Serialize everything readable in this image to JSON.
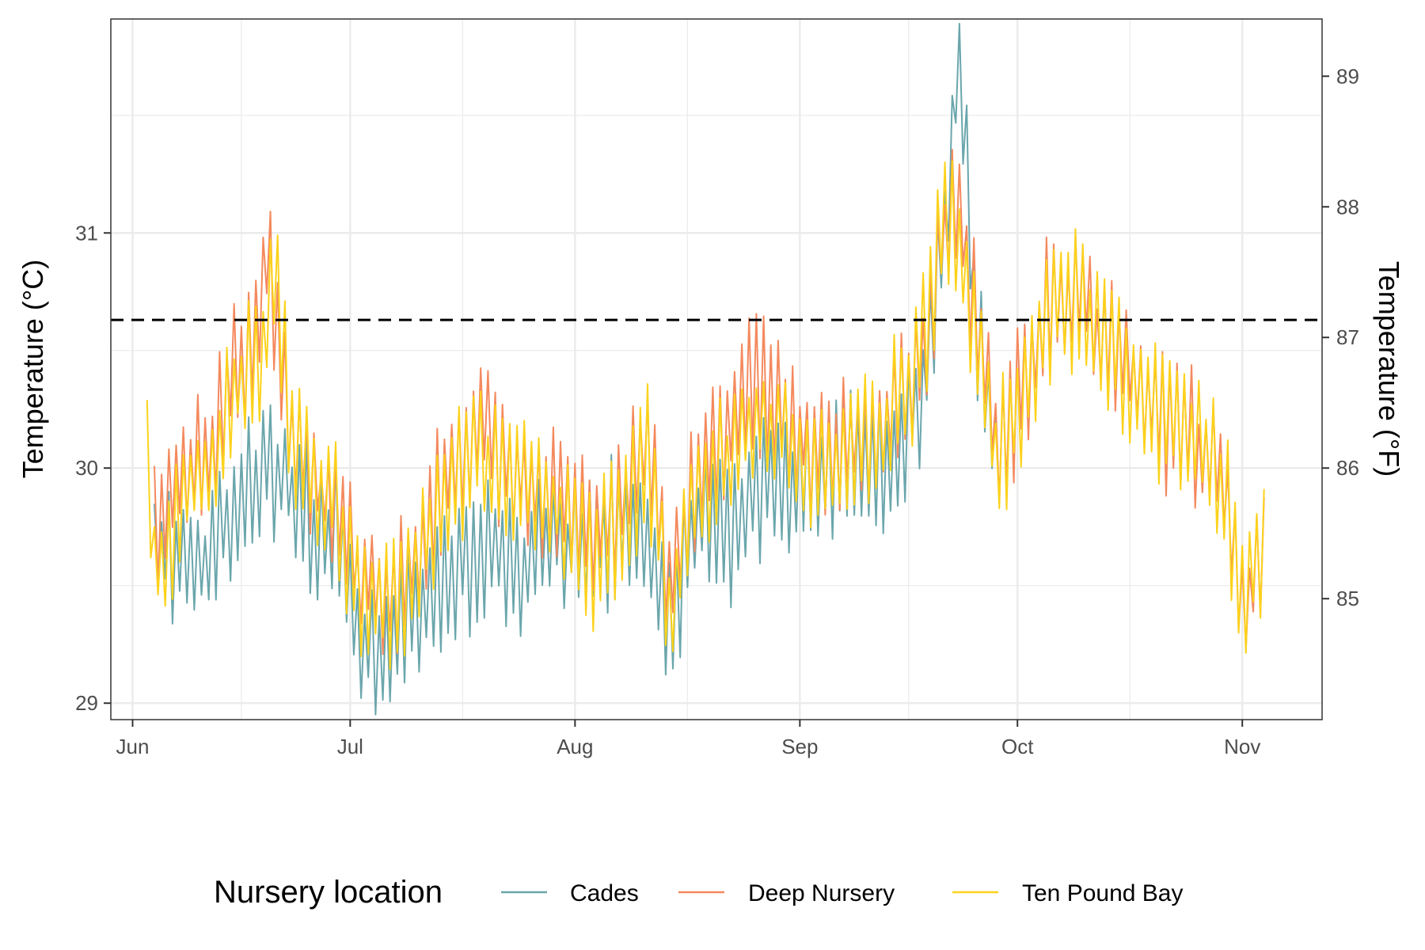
{
  "chart_data": {
    "type": "line",
    "title": "",
    "xlabel": "",
    "ylabel": "Temperature (°C)",
    "y2label": "Temperature (°F)",
    "x_ticks": [
      {
        "date": "2022-06-01",
        "label": "Jun"
      },
      {
        "date": "2022-07-01",
        "label": "Jul"
      },
      {
        "date": "2022-08-01",
        "label": "Aug"
      },
      {
        "date": "2022-09-01",
        "label": "Sep"
      },
      {
        "date": "2022-10-01",
        "label": "Oct"
      },
      {
        "date": "2022-11-01",
        "label": "Nov"
      }
    ],
    "xlim": [
      "2022-05-29",
      "2022-11-12"
    ],
    "ylim": [
      28.93,
      31.91
    ],
    "y_ticks": [
      29,
      30,
      31
    ],
    "y2_ticks": [
      85,
      86,
      87,
      88,
      89
    ],
    "threshold": {
      "value": 30.63,
      "style": "dashed",
      "color": "#000000"
    },
    "grid": true,
    "legend": {
      "title": "Nursery location",
      "position": "bottom"
    },
    "series": [
      {
        "name": "Cades",
        "color": "#6aa6ac",
        "points": [
          [
            "2022-06-04",
            29.72
          ],
          [
            "2022-06-08",
            29.58
          ],
          [
            "2022-06-12",
            29.66
          ],
          [
            "2022-06-15",
            29.8
          ],
          [
            "2022-06-17",
            29.97
          ],
          [
            "2022-06-20",
            30.0
          ],
          [
            "2022-06-23",
            29.9
          ],
          [
            "2022-06-26",
            29.78
          ],
          [
            "2022-06-29",
            29.7
          ],
          [
            "2022-07-02",
            29.28
          ],
          [
            "2022-07-05",
            29.24
          ],
          [
            "2022-07-09",
            29.38
          ],
          [
            "2022-07-13",
            29.48
          ],
          [
            "2022-07-17",
            29.6
          ],
          [
            "2022-07-21",
            29.65
          ],
          [
            "2022-07-25",
            29.55
          ],
          [
            "2022-07-29",
            29.68
          ],
          [
            "2022-08-02",
            29.66
          ],
          [
            "2022-08-06",
            29.72
          ],
          [
            "2022-08-10",
            29.8
          ],
          [
            "2022-08-14",
            29.3
          ],
          [
            "2022-08-18",
            29.78
          ],
          [
            "2022-08-22",
            29.72
          ],
          [
            "2022-08-26",
            29.9
          ],
          [
            "2022-08-30",
            29.96
          ],
          [
            "2022-09-03",
            29.98
          ],
          [
            "2022-09-07",
            30.06
          ],
          [
            "2022-09-11",
            30.0
          ],
          [
            "2022-09-15",
            30.1
          ],
          [
            "2022-09-18",
            30.3
          ],
          [
            "2022-09-21",
            31.05
          ],
          [
            "2022-09-23",
            31.74
          ],
          [
            "2022-09-25",
            30.7
          ],
          [
            "2022-09-28",
            30.1
          ]
        ]
      },
      {
        "name": "Deep Nursery",
        "color": "#f4895e",
        "points": [
          [
            "2022-06-04",
            29.8
          ],
          [
            "2022-06-08",
            29.92
          ],
          [
            "2022-06-12",
            30.1
          ],
          [
            "2022-06-15",
            30.4
          ],
          [
            "2022-06-18",
            30.62
          ],
          [
            "2022-06-20",
            30.9
          ],
          [
            "2022-06-22",
            30.3
          ],
          [
            "2022-06-25",
            29.95
          ],
          [
            "2022-06-29",
            29.85
          ],
          [
            "2022-07-02",
            29.55
          ],
          [
            "2022-07-06",
            29.45
          ],
          [
            "2022-07-10",
            29.58
          ],
          [
            "2022-07-14",
            29.95
          ],
          [
            "2022-07-18",
            30.2
          ],
          [
            "2022-07-22",
            30.05
          ],
          [
            "2022-07-26",
            29.95
          ],
          [
            "2022-07-30",
            29.9
          ],
          [
            "2022-08-03",
            29.72
          ],
          [
            "2022-08-07",
            29.8
          ],
          [
            "2022-08-11",
            30.15
          ],
          [
            "2022-08-14",
            29.5
          ],
          [
            "2022-08-18",
            30.0
          ],
          [
            "2022-08-22",
            30.15
          ],
          [
            "2022-08-26",
            30.35
          ],
          [
            "2022-08-30",
            30.2
          ],
          [
            "2022-09-03",
            30.05
          ],
          [
            "2022-09-07",
            30.1
          ],
          [
            "2022-09-11",
            30.15
          ],
          [
            "2022-09-15",
            30.3
          ],
          [
            "2022-09-19",
            30.6
          ],
          [
            "2022-09-22",
            31.2
          ],
          [
            "2022-09-25",
            30.7
          ],
          [
            "2022-09-28",
            30.1
          ],
          [
            "2022-10-02",
            30.35
          ],
          [
            "2022-10-05",
            30.7
          ],
          [
            "2022-10-09",
            30.75
          ],
          [
            "2022-10-13",
            30.55
          ],
          [
            "2022-10-17",
            30.4
          ],
          [
            "2022-10-21",
            30.2
          ],
          [
            "2022-10-25",
            30.15
          ],
          [
            "2022-10-29",
            29.95
          ],
          [
            "2022-11-01",
            29.4
          ],
          [
            "2022-11-04",
            29.6
          ]
        ]
      },
      {
        "name": "Ten Pound Bay",
        "color": "#fcd21c",
        "points": [
          [
            "2022-06-03",
            30.08
          ],
          [
            "2022-06-04",
            29.55
          ],
          [
            "2022-06-07",
            29.75
          ],
          [
            "2022-06-10",
            29.95
          ],
          [
            "2022-06-13",
            30.1
          ],
          [
            "2022-06-16",
            30.4
          ],
          [
            "2022-06-19",
            30.55
          ],
          [
            "2022-06-21",
            30.75
          ],
          [
            "2022-06-23",
            30.1
          ],
          [
            "2022-06-26",
            29.92
          ],
          [
            "2022-06-29",
            29.82
          ],
          [
            "2022-07-02",
            29.48
          ],
          [
            "2022-07-06",
            29.42
          ],
          [
            "2022-07-10",
            29.55
          ],
          [
            "2022-07-14",
            29.88
          ],
          [
            "2022-07-18",
            30.08
          ],
          [
            "2022-07-22",
            30.0
          ],
          [
            "2022-07-26",
            29.88
          ],
          [
            "2022-07-30",
            29.82
          ],
          [
            "2022-08-03",
            29.62
          ],
          [
            "2022-08-07",
            29.75
          ],
          [
            "2022-08-11",
            30.05
          ],
          [
            "2022-08-14",
            29.35
          ],
          [
            "2022-08-18",
            29.92
          ],
          [
            "2022-08-22",
            30.05
          ],
          [
            "2022-08-26",
            30.25
          ],
          [
            "2022-08-30",
            30.12
          ],
          [
            "2022-09-03",
            30.02
          ],
          [
            "2022-09-07",
            30.05
          ],
          [
            "2022-09-11",
            30.1
          ],
          [
            "2022-09-15",
            30.28
          ],
          [
            "2022-09-19",
            30.65
          ],
          [
            "2022-09-21",
            31.1
          ],
          [
            "2022-09-24",
            30.8
          ],
          [
            "2022-09-28",
            30.05
          ],
          [
            "2022-10-02",
            30.3
          ],
          [
            "2022-10-05",
            30.68
          ],
          [
            "2022-10-09",
            30.72
          ],
          [
            "2022-10-13",
            30.5
          ],
          [
            "2022-10-17",
            30.35
          ],
          [
            "2022-10-21",
            30.2
          ],
          [
            "2022-10-25",
            30.18
          ],
          [
            "2022-10-29",
            29.95
          ],
          [
            "2022-11-01",
            29.45
          ],
          [
            "2022-11-04",
            29.65
          ]
        ]
      }
    ]
  }
}
